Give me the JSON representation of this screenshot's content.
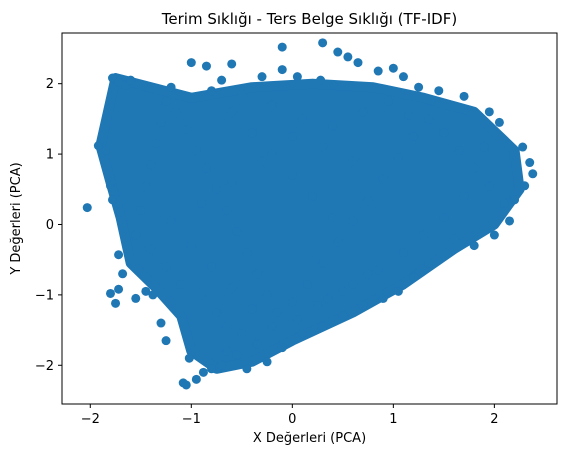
{
  "chart_data": {
    "type": "scatter",
    "title": "Terim Sıklığı - Ters Belge Sıklığı (TF-IDF)",
    "xlabel": "X Değerleri (PCA)",
    "ylabel": "Y Değerleri (PCA)",
    "xlim": [
      -2.28,
      2.62
    ],
    "ylim": [
      -2.55,
      2.72
    ],
    "xticks": [
      -2,
      -1,
      0,
      1,
      2
    ],
    "xtick_labels": [
      "−2",
      "−1",
      "0",
      "1",
      "2"
    ],
    "yticks": [
      -2,
      -1,
      0,
      1,
      2
    ],
    "ytick_labels": [
      "−2",
      "−1",
      "0",
      "1",
      "2"
    ],
    "grid": false,
    "marker_color": "#1f77b4",
    "points": [
      [
        -2.03,
        0.24
      ],
      [
        -1.78,
        2.08
      ],
      [
        -1.72,
        2.02
      ],
      [
        -1.65,
        1.98
      ],
      [
        -1.6,
        2.05
      ],
      [
        -1.92,
        1.12
      ],
      [
        -1.85,
        1.05
      ],
      [
        -1.8,
        0.55
      ],
      [
        -1.78,
        0.35
      ],
      [
        -1.7,
        0.18
      ],
      [
        -1.72,
        -0.43
      ],
      [
        -1.68,
        -0.7
      ],
      [
        -1.72,
        -0.92
      ],
      [
        -1.75,
        -1.12
      ],
      [
        -1.8,
        -0.98
      ],
      [
        -1.55,
        -1.05
      ],
      [
        -1.45,
        -0.95
      ],
      [
        -1.38,
        -1.0
      ],
      [
        -1.25,
        -1.65
      ],
      [
        -1.3,
        -1.4
      ],
      [
        -1.08,
        -2.25
      ],
      [
        -1.05,
        -2.28
      ],
      [
        -1.02,
        -1.9
      ],
      [
        -0.95,
        -2.2
      ],
      [
        -0.88,
        -2.1
      ],
      [
        -0.8,
        -2.05
      ],
      [
        -0.7,
        -2.0
      ],
      [
        -0.65,
        -1.8
      ],
      [
        -0.55,
        -1.85
      ],
      [
        -0.45,
        -2.05
      ],
      [
        -1.0,
        2.3
      ],
      [
        -0.85,
        2.25
      ],
      [
        -0.6,
        2.28
      ],
      [
        -0.7,
        2.05
      ],
      [
        -1.2,
        1.95
      ],
      [
        -0.3,
        2.1
      ],
      [
        -0.1,
        2.2
      ],
      [
        0.05,
        2.1
      ],
      [
        -0.1,
        2.52
      ],
      [
        0.3,
        2.58
      ],
      [
        0.45,
        2.45
      ],
      [
        0.55,
        2.38
      ],
      [
        0.65,
        2.3
      ],
      [
        0.28,
        2.05
      ],
      [
        0.85,
        2.18
      ],
      [
        1.0,
        2.22
      ],
      [
        1.1,
        2.1
      ],
      [
        1.25,
        1.95
      ],
      [
        1.45,
        1.9
      ],
      [
        1.7,
        1.82
      ],
      [
        1.95,
        1.6
      ],
      [
        2.05,
        1.45
      ],
      [
        2.28,
        1.1
      ],
      [
        2.38,
        0.72
      ],
      [
        2.3,
        0.55
      ],
      [
        2.35,
        0.88
      ],
      [
        2.2,
        0.35
      ],
      [
        2.15,
        0.05
      ],
      [
        2.0,
        -0.15
      ],
      [
        1.8,
        -0.3
      ],
      [
        1.6,
        -0.2
      ],
      [
        1.35,
        -0.55
      ],
      [
        1.2,
        -0.75
      ],
      [
        1.05,
        -0.95
      ],
      [
        0.9,
        -1.05
      ],
      [
        0.7,
        -1.15
      ],
      [
        0.5,
        -1.3
      ],
      [
        0.3,
        -1.45
      ],
      [
        0.1,
        -1.55
      ],
      [
        -0.1,
        -1.75
      ],
      [
        -0.25,
        -1.95
      ],
      [
        -0.35,
        -1.7
      ],
      [
        -0.5,
        -1.55
      ],
      [
        -0.65,
        -1.45
      ],
      [
        -0.75,
        -1.25
      ],
      [
        -0.9,
        -1.0
      ],
      [
        -1.1,
        -0.85
      ],
      [
        -1.25,
        -0.6
      ],
      [
        -1.4,
        -0.35
      ],
      [
        -1.55,
        -0.15
      ],
      [
        -1.5,
        0.2
      ],
      [
        -1.45,
        0.55
      ],
      [
        -1.4,
        0.85
      ],
      [
        -1.35,
        1.15
      ],
      [
        -1.3,
        1.45
      ],
      [
        -1.25,
        1.75
      ],
      [
        -1.15,
        1.6
      ],
      [
        -1.05,
        1.35
      ],
      [
        -0.95,
        1.05
      ],
      [
        -0.85,
        0.8
      ],
      [
        -0.75,
        0.5
      ],
      [
        -0.65,
        0.2
      ],
      [
        -0.55,
        -0.1
      ],
      [
        -0.45,
        -0.4
      ],
      [
        -0.35,
        -0.7
      ],
      [
        -0.25,
        -1.0
      ],
      [
        -0.15,
        -1.25
      ],
      [
        0.0,
        -1.1
      ],
      [
        0.15,
        -0.85
      ],
      [
        0.3,
        -0.55
      ],
      [
        0.45,
        -0.25
      ],
      [
        0.6,
        0.05
      ],
      [
        0.75,
        0.35
      ],
      [
        0.9,
        0.65
      ],
      [
        1.05,
        0.95
      ],
      [
        1.2,
        1.25
      ],
      [
        1.35,
        1.5
      ],
      [
        1.5,
        1.3
      ],
      [
        1.65,
        1.05
      ],
      [
        1.8,
        0.8
      ],
      [
        1.95,
        0.55
      ],
      [
        2.1,
        0.3
      ],
      [
        1.9,
        1.1
      ],
      [
        1.7,
        0.4
      ],
      [
        1.5,
        0.1
      ],
      [
        1.3,
        -0.15
      ],
      [
        1.1,
        -0.4
      ],
      [
        0.85,
        -0.65
      ],
      [
        0.6,
        -0.85
      ],
      [
        0.35,
        -1.05
      ],
      [
        -0.6,
        1.6
      ],
      [
        -0.4,
        1.3
      ],
      [
        -0.2,
        1.0
      ],
      [
        0.0,
        0.7
      ],
      [
        0.2,
        0.4
      ],
      [
        0.4,
        0.1
      ],
      [
        -0.8,
        1.9
      ],
      [
        -0.5,
        1.85
      ],
      [
        -0.2,
        1.7
      ],
      [
        0.1,
        1.5
      ],
      [
        0.4,
        1.4
      ],
      [
        0.7,
        1.6
      ],
      [
        0.95,
        1.75
      ],
      [
        1.15,
        1.55
      ],
      [
        0.6,
        0.9
      ],
      [
        0.3,
        1.1
      ],
      [
        0.0,
        1.25
      ],
      [
        -0.3,
        0.9
      ],
      [
        -0.6,
        0.6
      ],
      [
        -0.9,
        0.3
      ],
      [
        -1.2,
        0.05
      ],
      [
        -1.0,
        -0.3
      ],
      [
        -0.8,
        -0.6
      ],
      [
        -0.6,
        -0.9
      ],
      [
        -0.4,
        -1.2
      ],
      [
        -0.2,
        -1.45
      ],
      [
        0.05,
        -1.35
      ],
      [
        0.25,
        -1.15
      ],
      [
        0.5,
        -0.95
      ],
      [
        0.75,
        -0.7
      ]
    ]
  }
}
